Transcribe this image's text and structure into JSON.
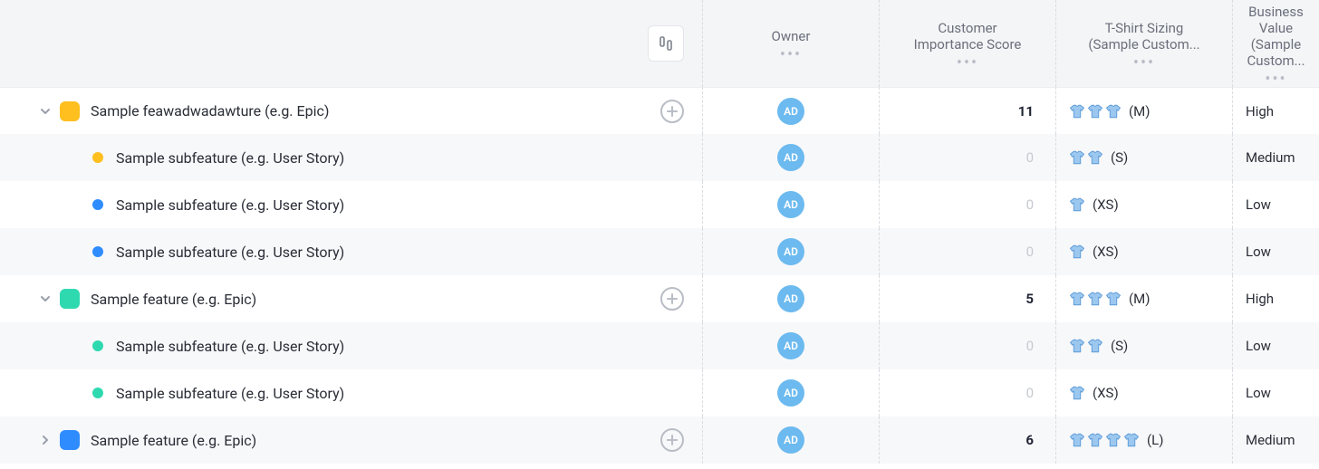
{
  "colors": {
    "header_bg": "#f4f5f7",
    "alt_row_bg": "#f7f8fa",
    "avatar_bg": "#6cbaef",
    "shirt_fill": "#9cc8f0",
    "shirt_stroke": "#5b99d6",
    "muted_text": "#c6c9d0",
    "folder_yellow": "#ffbf1f",
    "folder_teal": "#2fd9b0",
    "folder_blue": "#2f8cff",
    "dot_yellow": "#ffbf1f",
    "dot_blue": "#2f8cff",
    "dot_teal": "#2fd9b0"
  },
  "columns": {
    "owner": "Owner",
    "score": "Customer\nImportance Score",
    "tshirt": "T-Shirt Sizing\n(Sample Custom...",
    "bizvalue": "Business Value\n(Sample Custom..."
  },
  "owner_initials": "AD",
  "rows": [
    {
      "type": "epic",
      "expand": "down",
      "folder_color": "folder_yellow",
      "title": "Sample feawadwadawture (e.g. Epic)",
      "add": true,
      "score": "11",
      "score_bold": true,
      "shirts": 3,
      "size": "(M)",
      "bv": "High",
      "alt": false
    },
    {
      "type": "story",
      "dot_color": "dot_yellow",
      "title": "Sample subfeature (e.g. User Story)",
      "score": "0",
      "score_bold": false,
      "shirts": 2,
      "size": "(S)",
      "bv": "Medium",
      "alt": true
    },
    {
      "type": "story",
      "dot_color": "dot_blue",
      "title": "Sample subfeature (e.g. User Story)",
      "score": "0",
      "score_bold": false,
      "shirts": 1,
      "size": "(XS)",
      "bv": "Low",
      "alt": false
    },
    {
      "type": "story",
      "dot_color": "dot_blue",
      "title": "Sample subfeature (e.g. User Story)",
      "score": "0",
      "score_bold": false,
      "shirts": 1,
      "size": "(XS)",
      "bv": "Low",
      "alt": true
    },
    {
      "type": "epic",
      "expand": "down",
      "folder_color": "folder_teal",
      "title": "Sample feature (e.g. Epic)",
      "add": true,
      "score": "5",
      "score_bold": true,
      "shirts": 3,
      "size": "(M)",
      "bv": "High",
      "alt": false
    },
    {
      "type": "story",
      "dot_color": "dot_teal",
      "title": "Sample subfeature (e.g. User Story)",
      "score": "0",
      "score_bold": false,
      "shirts": 2,
      "size": "(S)",
      "bv": "Low",
      "alt": true
    },
    {
      "type": "story",
      "dot_color": "dot_teal",
      "title": "Sample subfeature (e.g. User Story)",
      "score": "0",
      "score_bold": false,
      "shirts": 1,
      "size": "(XS)",
      "bv": "Low",
      "alt": false
    },
    {
      "type": "epic",
      "expand": "right",
      "folder_color": "folder_blue",
      "title": "Sample feature (e.g. Epic)",
      "add": true,
      "score": "6",
      "score_bold": true,
      "shirts": 4,
      "size": "(L)",
      "bv": "Medium",
      "alt": true
    }
  ]
}
